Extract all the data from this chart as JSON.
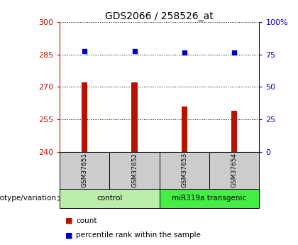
{
  "title": "GDS2066 / 258526_at",
  "samples": [
    "GSM37651",
    "GSM37652",
    "GSM37653",
    "GSM37654"
  ],
  "bar_values": [
    272,
    272,
    261,
    259
  ],
  "percentile_values": [
    286.5,
    286.5,
    286,
    286
  ],
  "bar_color": "#bb1100",
  "dot_color": "#0000bb",
  "ylim_left": [
    240,
    300
  ],
  "yticks_left": [
    240,
    255,
    270,
    285,
    300
  ],
  "ylim_right": [
    0,
    100
  ],
  "yticks_right": [
    0,
    25,
    50,
    75,
    100
  ],
  "yticklabels_right": [
    "0",
    "25",
    "50",
    "75",
    "100%"
  ],
  "groups": [
    {
      "label": "control",
      "samples": [
        0,
        1
      ],
      "color": "#bbeeaa"
    },
    {
      "label": "miR319a transgenic",
      "samples": [
        2,
        3
      ],
      "color": "#44ee44"
    }
  ],
  "genotype_label": "genotype/variation",
  "legend_count_label": "count",
  "legend_percentile_label": "percentile rank within the sample",
  "label_box_color": "#cccccc",
  "background_color": "#ffffff"
}
